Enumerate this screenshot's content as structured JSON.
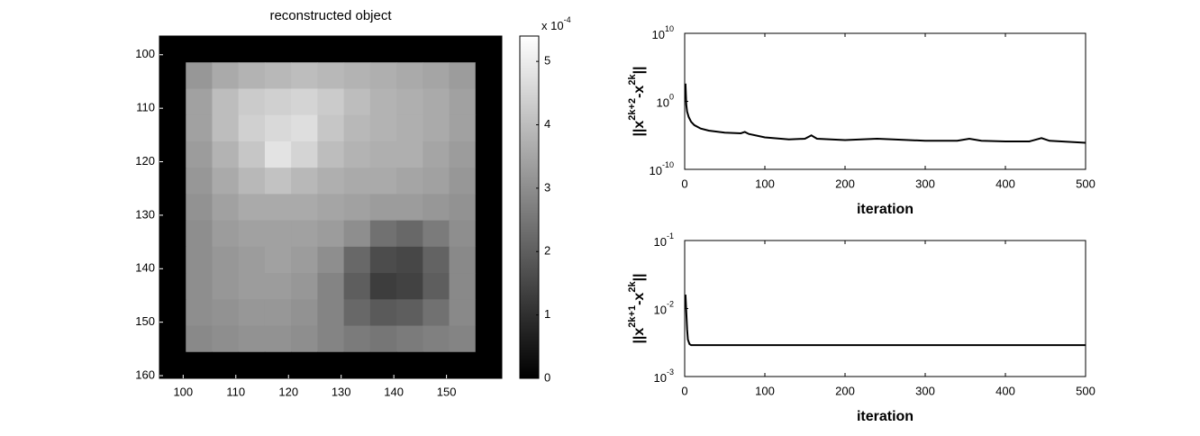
{
  "chart_data": [
    {
      "type": "image",
      "title": "reconstructed object",
      "colormap": "gray",
      "xlim": [
        95.5,
        160.5
      ],
      "ylim": [
        96.5,
        160.5
      ],
      "y_reversed": true,
      "xticks": [
        100,
        110,
        120,
        130,
        140,
        150
      ],
      "yticks": [
        100,
        110,
        120,
        130,
        140,
        150,
        160
      ],
      "z": [
        [
          0,
          0,
          0,
          0,
          0,
          0,
          0,
          0,
          0,
          0,
          0,
          0,
          0
        ],
        [
          0,
          3.2,
          3.6,
          3.8,
          3.9,
          4.0,
          3.9,
          3.8,
          3.7,
          3.6,
          3.5,
          3.3,
          0
        ],
        [
          0,
          3.4,
          4.0,
          4.3,
          4.4,
          4.5,
          4.3,
          4.0,
          3.8,
          3.7,
          3.6,
          3.4,
          0
        ],
        [
          0,
          3.4,
          4.0,
          4.4,
          4.6,
          4.7,
          4.2,
          3.9,
          3.8,
          3.7,
          3.6,
          3.4,
          0
        ],
        [
          0,
          3.3,
          3.8,
          4.2,
          4.8,
          4.5,
          4.0,
          3.8,
          3.7,
          3.7,
          3.5,
          3.3,
          0
        ],
        [
          0,
          3.2,
          3.6,
          3.9,
          4.1,
          3.9,
          3.7,
          3.6,
          3.6,
          3.5,
          3.4,
          3.2,
          0
        ],
        [
          0,
          3.1,
          3.4,
          3.6,
          3.6,
          3.6,
          3.5,
          3.4,
          3.3,
          3.3,
          3.2,
          3.1,
          0
        ],
        [
          0,
          3.0,
          3.3,
          3.4,
          3.4,
          3.4,
          3.3,
          3.0,
          2.4,
          2.2,
          2.6,
          3.0,
          0
        ],
        [
          0,
          3.0,
          3.2,
          3.3,
          3.4,
          3.3,
          3.0,
          2.2,
          1.6,
          1.5,
          2.1,
          2.9,
          0
        ],
        [
          0,
          3.0,
          3.2,
          3.3,
          3.3,
          3.2,
          2.8,
          2.0,
          1.3,
          1.4,
          2.0,
          2.9,
          0
        ],
        [
          0,
          3.0,
          3.1,
          3.2,
          3.2,
          3.1,
          2.8,
          2.2,
          1.9,
          2.0,
          2.4,
          2.9,
          0
        ],
        [
          0,
          2.9,
          3.0,
          3.1,
          3.1,
          3.0,
          2.8,
          2.6,
          2.5,
          2.6,
          2.7,
          2.8,
          0
        ],
        [
          0,
          0,
          0,
          0,
          0,
          0,
          0,
          0,
          0,
          0,
          0,
          0,
          0
        ]
      ],
      "clim": [
        0,
        5.4
      ],
      "cticks": [
        0,
        1,
        2,
        3,
        4,
        5
      ],
      "colorbar_label": {
        "label": "x 10",
        "exponent": "-4"
      }
    },
    {
      "type": "line",
      "xlabel": "iteration",
      "ylabel": {
        "parts": [
          "||x",
          "2k+2",
          "-x",
          "2k",
          "||"
        ]
      },
      "log_y": true,
      "color": "#000000",
      "xlim": [
        0,
        500
      ],
      "xticks": [
        0,
        100,
        200,
        300,
        400,
        500
      ],
      "ylim": [
        1e-10,
        10000000000.0
      ],
      "yticks": [
        {
          "value": 1e-10,
          "label": "10",
          "exponent": "-10"
        },
        {
          "value": 1,
          "label": "10",
          "exponent": "0"
        },
        {
          "value": 10000000000.0,
          "label": "10",
          "exponent": "10"
        }
      ],
      "x": [
        1,
        2,
        3,
        5,
        8,
        12,
        20,
        30,
        50,
        70,
        75,
        80,
        100,
        130,
        150,
        158,
        165,
        200,
        240,
        260,
        300,
        340,
        355,
        370,
        400,
        430,
        445,
        455,
        500
      ],
      "values": [
        400,
        0.32,
        0.032,
        0.005,
        0.001,
        0.00032,
        0.0001,
        5e-05,
        2.5e-05,
        2e-05,
        3.2e-05,
        1.6e-05,
        5e-06,
        2.5e-06,
        3.2e-06,
        1e-05,
        3.2e-06,
        2e-06,
        3.2e-06,
        2.5e-06,
        1.6e-06,
        1.6e-06,
        3.2e-06,
        1.6e-06,
        1.3e-06,
        1.3e-06,
        4e-06,
        1.6e-06,
        8e-07
      ]
    },
    {
      "type": "line",
      "xlabel": "iteration",
      "ylabel": {
        "parts": [
          "||x",
          "2k+1",
          "-x",
          "2k",
          "||"
        ]
      },
      "log_y": true,
      "color": "#000000",
      "xlim": [
        0,
        500
      ],
      "xticks": [
        0,
        100,
        200,
        300,
        400,
        500
      ],
      "ylim": [
        0.001,
        0.1
      ],
      "yticks": [
        {
          "value": 0.001,
          "label": "10",
          "exponent": "-3"
        },
        {
          "value": 0.01,
          "label": "10",
          "exponent": "-2"
        },
        {
          "value": 0.1,
          "label": "10",
          "exponent": "-1"
        }
      ],
      "x": [
        1,
        2,
        3,
        4,
        6,
        8,
        10,
        20,
        500
      ],
      "values": [
        0.016,
        0.009,
        0.005,
        0.0035,
        0.003,
        0.0029,
        0.0029,
        0.0029,
        0.0029
      ]
    }
  ]
}
